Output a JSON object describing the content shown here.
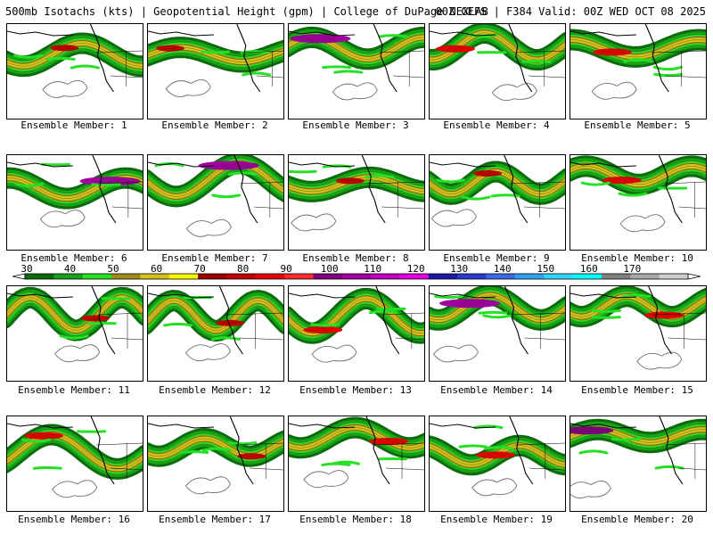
{
  "header": {
    "left": "500mb Isotachs (kts) | Geopotential Height (gpm) | College of DuPage NEXLAB",
    "right": "00Z GEFS | F384 Valid: 00Z WED OCT 08 2025"
  },
  "colorbar": {
    "labels": [
      "30",
      "40",
      "50",
      "60",
      "70",
      "80",
      "90",
      "100",
      "110",
      "120",
      "130",
      "140",
      "150",
      "160",
      "170"
    ],
    "colors": [
      "#0c6b0c",
      "#16a316",
      "#26e026",
      "#9c8a1c",
      "#d2c21c",
      "#f5f500",
      "#9a0000",
      "#c20000",
      "#e60000",
      "#ff2a2a",
      "#800080",
      "#a000a0",
      "#c000c0",
      "#e000e0",
      "#1a1aa0",
      "#2a3ad0",
      "#3a6ae6",
      "#30a0f0",
      "#30d6ff",
      "#00ffff",
      "#808080",
      "#a8a8a8",
      "#cfcfcf"
    ]
  },
  "map_layers": [
    "wind-bands",
    "height-contours",
    "coastlines",
    "borders"
  ],
  "members": [
    {
      "label": "Ensemble Member: 1",
      "max_speed": 80
    },
    {
      "label": "Ensemble Member: 2",
      "max_speed": 80
    },
    {
      "label": "Ensemble Member: 3",
      "max_speed": 110
    },
    {
      "label": "Ensemble Member: 4",
      "max_speed": 90
    },
    {
      "label": "Ensemble Member: 5",
      "max_speed": 90
    },
    {
      "label": "Ensemble Member: 6",
      "max_speed": 110
    },
    {
      "label": "Ensemble Member: 7",
      "max_speed": 110
    },
    {
      "label": "Ensemble Member: 8",
      "max_speed": 80
    },
    {
      "label": "Ensemble Member: 9",
      "max_speed": 80
    },
    {
      "label": "Ensemble Member: 10",
      "max_speed": 90
    },
    {
      "label": "Ensemble Member: 11",
      "max_speed": 80
    },
    {
      "label": "Ensemble Member: 12",
      "max_speed": 80
    },
    {
      "label": "Ensemble Member: 13",
      "max_speed": 90
    },
    {
      "label": "Ensemble Member: 14",
      "max_speed": 110
    },
    {
      "label": "Ensemble Member: 15",
      "max_speed": 90
    },
    {
      "label": "Ensemble Member: 16",
      "max_speed": 90
    },
    {
      "label": "Ensemble Member: 17",
      "max_speed": 80
    },
    {
      "label": "Ensemble Member: 18",
      "max_speed": 90
    },
    {
      "label": "Ensemble Member: 19",
      "max_speed": 90
    },
    {
      "label": "Ensemble Member: 20",
      "max_speed": 100
    }
  ]
}
